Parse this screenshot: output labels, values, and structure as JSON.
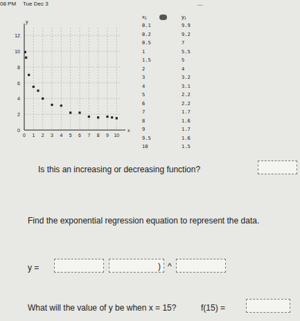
{
  "header": {
    "time": "08 PM",
    "date": "Tue Dec 3",
    "menu": "..."
  },
  "chart_data": {
    "type": "scatter",
    "x_label": "x",
    "y_label": "y",
    "x": [
      0.1,
      0.2,
      0.5,
      1,
      1.5,
      2,
      3,
      4,
      5,
      6,
      7,
      8,
      9,
      9.5,
      10
    ],
    "values": [
      9.9,
      9.2,
      7,
      5.5,
      5,
      4,
      3.2,
      3.1,
      2.2,
      2.2,
      1.7,
      1.6,
      1.7,
      1.6,
      1.5
    ],
    "xlim": [
      0,
      10.5
    ],
    "ylim": [
      0,
      13
    ],
    "xticks": [
      0,
      1,
      2,
      3,
      4,
      5,
      6,
      7,
      8,
      9,
      10
    ],
    "yticks": [
      0,
      2,
      4,
      6,
      8,
      10,
      12
    ],
    "grid": true,
    "color": "#222222",
    "marker": "square"
  },
  "table": {
    "columns": [
      "x₁",
      "y₁"
    ],
    "rows": [
      [
        "0.1",
        "9.9"
      ],
      [
        "0.2",
        "9.2"
      ],
      [
        "0.5",
        "7"
      ],
      [
        "1",
        "5.5"
      ],
      [
        "1.5",
        "5"
      ],
      [
        "2",
        "4"
      ],
      [
        "3",
        "3.2"
      ],
      [
        "4",
        "3.1"
      ],
      [
        "5",
        "2.2"
      ],
      [
        "6",
        "2.2"
      ],
      [
        "7",
        "1.7"
      ],
      [
        "8",
        "1.6"
      ],
      [
        "9",
        "1.7"
      ],
      [
        "9.5",
        "1.6"
      ],
      [
        "10",
        "1.5"
      ]
    ]
  },
  "questions": {
    "q1": "Is this an increasing or decreasing function?",
    "q2": "Find the exponential regression equation to represent the data.",
    "eq_y": "y =",
    "eq_open": "(",
    "eq_close": ")",
    "eq_pow": "^",
    "q3": "What will the value of y be when x = 15?",
    "q3_f": "f(15) ="
  }
}
